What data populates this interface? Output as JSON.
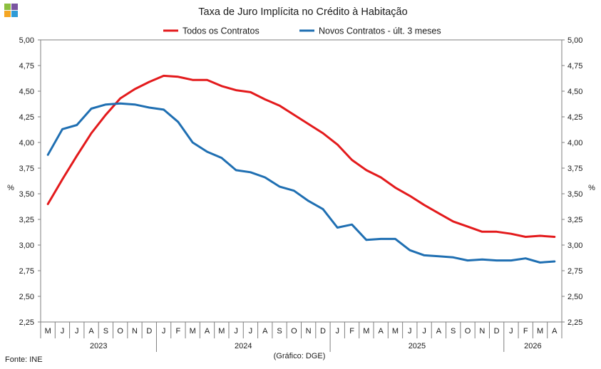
{
  "logo": {
    "colors": [
      "#8cbf3f",
      "#7a55a0",
      "#f5a623",
      "#2f9bd6"
    ]
  },
  "source": "Fonte: INE",
  "graphic_credit": "(Gráfico: DGE)",
  "chart_data": {
    "type": "line",
    "title": "Taxa de Juro Implícita  no Crédito à Habitação",
    "ylabel": "%",
    "ylabel_right": "%",
    "ylim": [
      2.25,
      5.0
    ],
    "yticks": [
      "2,25",
      "2,50",
      "2,75",
      "3,00",
      "3,25",
      "3,50",
      "3,75",
      "4,00",
      "4,25",
      "4,50",
      "4,75",
      "5,00"
    ],
    "ytick_values": [
      2.25,
      2.5,
      2.75,
      3.0,
      3.25,
      3.5,
      3.75,
      4.0,
      4.25,
      4.5,
      4.75,
      5.0
    ],
    "categories": [
      "M",
      "J",
      "J",
      "A",
      "S",
      "O",
      "N",
      "D",
      "J",
      "F",
      "M",
      "A",
      "M",
      "J",
      "J",
      "A",
      "S",
      "O",
      "N",
      "D",
      "J",
      "F",
      "M",
      "A",
      "M",
      "J",
      "J",
      "A",
      "S",
      "O",
      "N",
      "D",
      "J",
      "F",
      "M",
      "A"
    ],
    "years": [
      {
        "label": "2023",
        "span": 8
      },
      {
        "label": "2024",
        "span": 12
      },
      {
        "label": "2025",
        "span": 12
      },
      {
        "label": "2026",
        "span": 4
      }
    ],
    "legend_position": "top-center",
    "grid": false,
    "series": [
      {
        "name": "Todos os Contratos",
        "color": "#e31a1c",
        "values": [
          3.4,
          3.64,
          3.87,
          4.09,
          4.27,
          4.43,
          4.52,
          4.59,
          4.65,
          4.64,
          4.61,
          4.61,
          4.55,
          4.51,
          4.49,
          4.42,
          4.36,
          4.27,
          4.18,
          4.09,
          3.98,
          3.83,
          3.73,
          3.66,
          3.56,
          3.48,
          3.39,
          3.31,
          3.23,
          3.18,
          3.13,
          3.13,
          3.11,
          3.08,
          3.09,
          3.08
        ]
      },
      {
        "name": "Novos Contratos - últ. 3 meses",
        "color": "#1f6fb2",
        "values": [
          3.88,
          4.13,
          4.17,
          4.33,
          4.37,
          4.38,
          4.37,
          4.34,
          4.32,
          4.2,
          4.0,
          3.91,
          3.85,
          3.73,
          3.71,
          3.66,
          3.57,
          3.53,
          3.43,
          3.35,
          3.17,
          3.2,
          3.05,
          3.06,
          3.06,
          2.95,
          2.9,
          2.89,
          2.88,
          2.85,
          2.86,
          2.85,
          2.85,
          2.87,
          2.83,
          2.84
        ]
      }
    ]
  }
}
